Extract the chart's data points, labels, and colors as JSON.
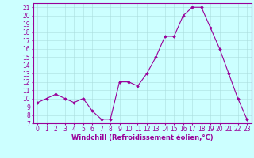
{
  "x": [
    0,
    1,
    2,
    3,
    4,
    5,
    6,
    7,
    8,
    9,
    10,
    11,
    12,
    13,
    14,
    15,
    16,
    17,
    18,
    19,
    20,
    21,
    22,
    23
  ],
  "y": [
    9.5,
    10,
    10.5,
    10,
    9.5,
    10,
    8.5,
    7.5,
    7.5,
    12,
    12,
    11.5,
    13,
    15,
    17.5,
    17.5,
    20,
    21,
    21,
    18.5,
    16,
    13,
    10,
    7.5
  ],
  "line_color": "#990099",
  "marker": "D",
  "marker_size": 1.8,
  "bg_color": "#ccffff",
  "grid_color": "#aadddd",
  "xlabel": "Windchill (Refroidissement éolien,°C)",
  "xlabel_color": "#990099",
  "ylabel_color": "#990099",
  "ylim": [
    7,
    21.5
  ],
  "xlim": [
    -0.5,
    23.5
  ],
  "yticks": [
    7,
    8,
    9,
    10,
    11,
    12,
    13,
    14,
    15,
    16,
    17,
    18,
    19,
    20,
    21
  ],
  "xticks": [
    0,
    1,
    2,
    3,
    4,
    5,
    6,
    7,
    8,
    9,
    10,
    11,
    12,
    13,
    14,
    15,
    16,
    17,
    18,
    19,
    20,
    21,
    22,
    23
  ],
  "tick_fontsize": 5.5,
  "xlabel_fontsize": 6.0,
  "line_width": 0.8
}
